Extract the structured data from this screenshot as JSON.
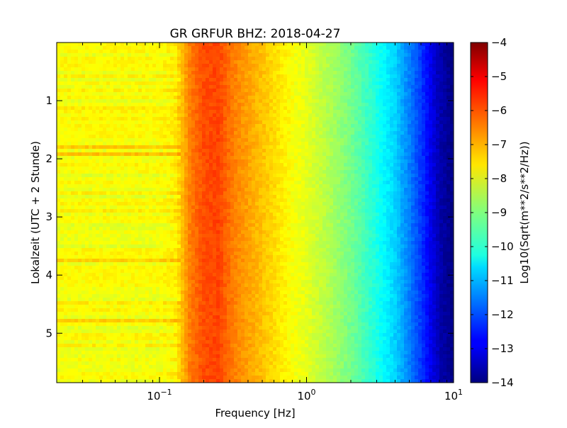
{
  "chart_data": {
    "type": "heatmap",
    "title": "GR GRFUR BHZ: 2018-04-27",
    "xlabel": "Frequency [Hz]",
    "ylabel": "Lokalzeit (UTC + 2 Stunde)",
    "xscale": "log",
    "xlim": [
      0.02,
      10
    ],
    "ylim": [
      5.85,
      0.0
    ],
    "x_ticks": [
      {
        "value": 0.1,
        "base": "10",
        "exp": "−1"
      },
      {
        "value": 1,
        "base": "10",
        "exp": "0"
      },
      {
        "value": 10,
        "base": "10",
        "exp": "1"
      }
    ],
    "y_ticks": [
      {
        "value": 1,
        "label": "1"
      },
      {
        "value": 2,
        "label": "2"
      },
      {
        "value": 3,
        "label": "3"
      },
      {
        "value": 4,
        "label": "4"
      },
      {
        "value": 5,
        "label": "5"
      }
    ],
    "colorbar": {
      "label": "Log10(Sqrt(m**2/s**2/Hz))",
      "colormap": "jet",
      "range": [
        -14,
        -4
      ],
      "ticks": [
        "−4",
        "−5",
        "−6",
        "−7",
        "−8",
        "−9",
        "−10",
        "−11",
        "−12",
        "−13",
        "−14"
      ]
    },
    "spectrum_profile": [
      [
        0.02,
        -7.8
      ],
      [
        0.1,
        -7.8
      ],
      [
        0.13,
        -7.6
      ],
      [
        0.16,
        -6.5
      ],
      [
        0.2,
        -6.0
      ],
      [
        0.25,
        -5.9
      ],
      [
        0.32,
        -6.5
      ],
      [
        0.45,
        -7.0
      ],
      [
        0.6,
        -7.4
      ],
      [
        0.8,
        -7.8
      ],
      [
        1.0,
        -8.0
      ],
      [
        1.5,
        -8.6
      ],
      [
        2.0,
        -9.1
      ],
      [
        3.0,
        -10.0
      ],
      [
        4.0,
        -10.7
      ],
      [
        5.0,
        -11.5
      ],
      [
        6.0,
        -12.2
      ],
      [
        7.0,
        -12.9
      ],
      [
        8.0,
        -13.5
      ],
      [
        10.0,
        -14.0
      ]
    ]
  }
}
